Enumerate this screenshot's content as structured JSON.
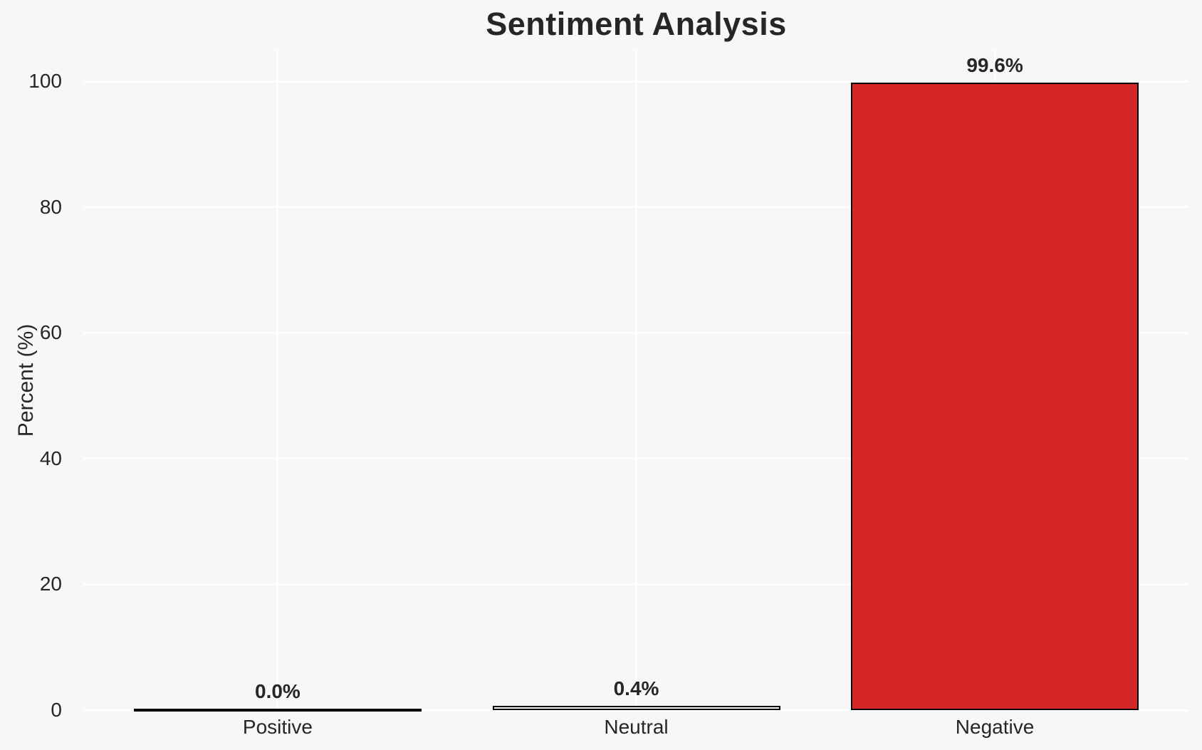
{
  "chart_data": {
    "type": "bar",
    "title": "Sentiment Analysis",
    "xlabel": "",
    "ylabel": "Percent (%)",
    "categories": [
      "Positive",
      "Neutral",
      "Negative"
    ],
    "values": [
      0.0,
      0.4,
      99.6
    ],
    "value_labels": [
      "0.0%",
      "0.4%",
      "99.6%"
    ],
    "yticks": [
      0,
      20,
      40,
      60,
      80,
      100
    ],
    "ylim": [
      0,
      105
    ],
    "grid": "on",
    "grid_style": "white gridlines (horizontal at yticks, vertical at category centers) on light gray background",
    "legend": "none",
    "colors": {
      "background": "#f7f7f7",
      "grid": "#ffffff",
      "text": "#262626",
      "bar_fills": [
        "#f7f7f7",
        "#f7f7f7",
        "#d62728"
      ],
      "bar_edge": "#000000"
    }
  }
}
